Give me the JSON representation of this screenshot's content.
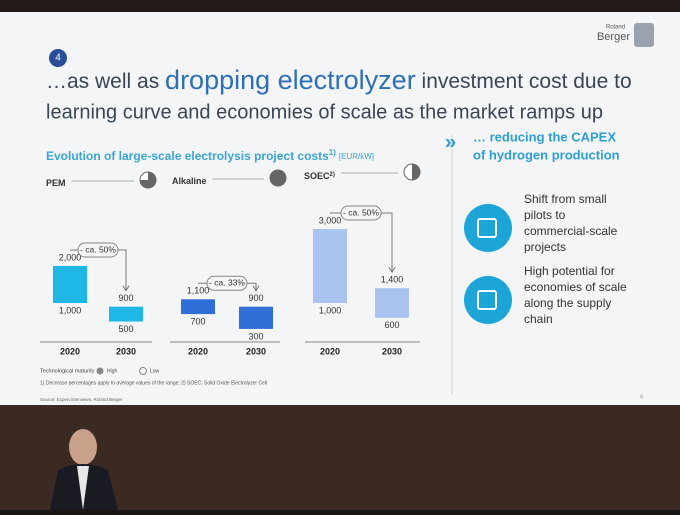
{
  "slide": {
    "number": "4",
    "logo": {
      "small": "Roland",
      "big": "Berger"
    },
    "headline": {
      "line1_start": "…as well as ",
      "highlight": "dropping electrolyzer",
      "line1_end": " investment cost due to",
      "line2": "learning curve and economies of scale as the market ramps up"
    },
    "chart": {
      "title": "Evolution of large-scale electrolysis project costs",
      "title_superscript": "1)",
      "unit": "[EUR/kW]",
      "technologies": [
        {
          "name": "PEM",
          "superscript": null,
          "maturity": 0.75,
          "color": "#1fb8e6",
          "reduction": "- ca. 50%",
          "ranges": [
            {
              "year": "2020",
              "low": 1000,
              "high": 2000,
              "low_label": "1,000",
              "high_label": "2,000"
            },
            {
              "year": "2030",
              "low": 500,
              "high": 900,
              "low_label": "500",
              "high_label": "900"
            }
          ]
        },
        {
          "name": "Alkaline",
          "superscript": null,
          "maturity": 1,
          "color": "#2f6fd6",
          "reduction": "- ca. 33%",
          "ranges": [
            {
              "year": "2020",
              "low": 700,
              "high": 1100,
              "low_label": "700",
              "high_label": "1,100"
            },
            {
              "year": "2030",
              "low": 300,
              "high": 900,
              "low_label": "300",
              "high_label": "900"
            }
          ]
        },
        {
          "name": "SOEC",
          "superscript": "2)",
          "maturity": 0.5,
          "color": "#aac4ef",
          "reduction": "- ca. 50%",
          "ranges": [
            {
              "year": "2020",
              "low": 1000,
              "high": 3000,
              "low_label": "1,000",
              "high_label": "3,000"
            },
            {
              "year": "2030",
              "low": 600,
              "high": 1400,
              "low_label": "600",
              "high_label": "1,400"
            }
          ]
        }
      ]
    },
    "sidebar": {
      "title_lines": [
        "… reducing the CAPEX",
        "of hydrogen production"
      ],
      "items": [
        {
          "lines": [
            "Shift from small",
            "pilots to",
            "commercial-scale",
            "projects"
          ]
        },
        {
          "lines": [
            "High potential for",
            "economies of scale",
            "along the supply",
            "chain"
          ]
        }
      ]
    },
    "legend": {
      "label": "Technological maturity",
      "high": "High",
      "low": "Low"
    },
    "footnote": "1) Decrease percentages apply to average values of the range; 2) SOEC: Solid Oxide Electrolyzer Cell",
    "source": "Source: Expert interviews, Roland Berger",
    "page": "9"
  }
}
